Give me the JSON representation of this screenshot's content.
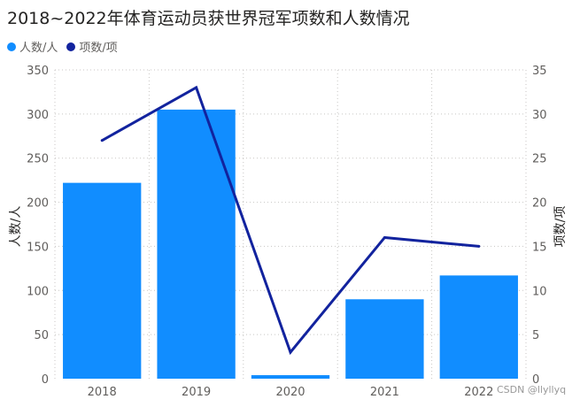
{
  "chart_data": {
    "type": "bar",
    "title": "2018~2022年体育运动员获世界冠军项数和人数情况",
    "categories": [
      "2018",
      "2019",
      "2020",
      "2021",
      "2022"
    ],
    "series": [
      {
        "name": "人数/人",
        "type": "bar",
        "axis": "left",
        "color": "#118dff",
        "values": [
          222,
          305,
          4,
          90,
          117
        ]
      },
      {
        "name": "项数/项",
        "type": "line",
        "axis": "right",
        "color": "#12239e",
        "values": [
          27,
          33,
          3,
          16,
          15
        ]
      }
    ],
    "ylabel": "人数/人",
    "ylabel_right": "项数/项",
    "ylim": [
      0,
      350
    ],
    "yticks": [
      0,
      50,
      100,
      150,
      200,
      250,
      300,
      350
    ],
    "ylim_right": [
      0,
      35
    ],
    "yticks_right": [
      0,
      5,
      10,
      15,
      20,
      25,
      30,
      35
    ],
    "legend_position": "top-left",
    "grid": true
  },
  "watermark": "CSDN @llyllyq"
}
